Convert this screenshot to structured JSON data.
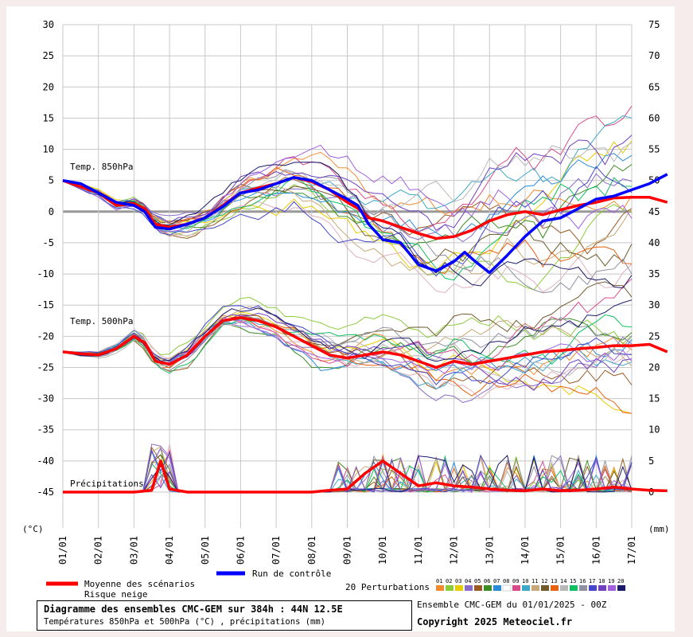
{
  "chart_data": {
    "type": "line",
    "left_axis": {
      "unit_label": "(°C)",
      "ticks": [
        30,
        25,
        20,
        15,
        10,
        5,
        0,
        -5,
        -10,
        -15,
        -20,
        -25,
        -30,
        -35,
        -40,
        -45
      ],
      "range": [
        -50,
        30
      ]
    },
    "right_axis": {
      "unit_label": "(mm)",
      "ticks": [
        75,
        70,
        65,
        60,
        55,
        50,
        45,
        40,
        35,
        30,
        25,
        20,
        15,
        10,
        5,
        0
      ],
      "range": [
        -5,
        75
      ]
    },
    "x_ticks": [
      "01/01",
      "02/01",
      "03/01",
      "04/01",
      "05/01",
      "06/01",
      "07/01",
      "08/01",
      "09/01",
      "10/01",
      "11/01",
      "12/01",
      "13/01",
      "14/01",
      "15/01",
      "16/01",
      "17/01"
    ],
    "x_range_days": [
      0,
      16
    ],
    "panel_labels": {
      "t850": "Temp. 850hPa",
      "t500": "Temp. 500hPa",
      "precip": "Précipitations"
    },
    "series": [
      {
        "name": "Moyenne des scénarios",
        "group": "t850",
        "color": "#ff0000",
        "values": [
          [
            0,
            5
          ],
          [
            0.5,
            4
          ],
          [
            1,
            3
          ],
          [
            1.5,
            1
          ],
          [
            2,
            1.3
          ],
          [
            2.3,
            0.5
          ],
          [
            2.6,
            -2
          ],
          [
            3,
            -2.5
          ],
          [
            3.5,
            -2
          ],
          [
            4,
            -1
          ],
          [
            4.5,
            1
          ],
          [
            5,
            3
          ],
          [
            5.5,
            3.8
          ],
          [
            6,
            4.5
          ],
          [
            6.5,
            5.5
          ],
          [
            7,
            4.8
          ],
          [
            7.5,
            3.5
          ],
          [
            8,
            1.5
          ],
          [
            8.3,
            0.5
          ],
          [
            8.6,
            -1
          ],
          [
            9,
            -1.5
          ],
          [
            9.5,
            -2.5
          ],
          [
            10,
            -3.5
          ],
          [
            10.5,
            -4.3
          ],
          [
            11,
            -4
          ],
          [
            11.5,
            -3
          ],
          [
            12,
            -1.5
          ],
          [
            12.5,
            -0.5
          ],
          [
            13,
            0
          ],
          [
            13.5,
            -0.5
          ],
          [
            14,
            0.3
          ],
          [
            14.5,
            1
          ],
          [
            15,
            1.5
          ],
          [
            15.5,
            2.2
          ],
          [
            16,
            2.3
          ],
          [
            16.5,
            2.3
          ],
          [
            17,
            1.5
          ]
        ]
      },
      {
        "name": "Run de contrôle",
        "group": "t850",
        "color": "#0000ff",
        "values": [
          [
            0,
            5
          ],
          [
            0.5,
            4.5
          ],
          [
            1,
            3
          ],
          [
            1.5,
            1.5
          ],
          [
            2,
            1
          ],
          [
            2.3,
            0
          ],
          [
            2.6,
            -2.5
          ],
          [
            3,
            -2.8
          ],
          [
            3.5,
            -2
          ],
          [
            4,
            -1
          ],
          [
            4.5,
            0.8
          ],
          [
            5,
            3
          ],
          [
            5.5,
            3.5
          ],
          [
            6,
            4.5
          ],
          [
            6.5,
            5.5
          ],
          [
            7,
            5
          ],
          [
            7.5,
            3.5
          ],
          [
            8,
            2
          ],
          [
            8.3,
            1
          ],
          [
            8.6,
            -2
          ],
          [
            9,
            -4.5
          ],
          [
            9.5,
            -5
          ],
          [
            10,
            -8.5
          ],
          [
            10.5,
            -9.5
          ],
          [
            11,
            -8
          ],
          [
            11.3,
            -6.5
          ],
          [
            11.6,
            -8
          ],
          [
            12,
            -9.8
          ],
          [
            12.5,
            -7
          ],
          [
            13,
            -4
          ],
          [
            13.5,
            -1.5
          ],
          [
            14,
            -1
          ],
          [
            14.5,
            0.5
          ],
          [
            15,
            2
          ],
          [
            15.5,
            2.5
          ],
          [
            16,
            3.5
          ],
          [
            16.5,
            4.5
          ],
          [
            17,
            6
          ]
        ]
      },
      {
        "name": "Moyenne des scénarios",
        "group": "t500",
        "color": "#ff0000",
        "values": [
          [
            0,
            -22.5
          ],
          [
            0.5,
            -22.8
          ],
          [
            1,
            -23
          ],
          [
            1.5,
            -22
          ],
          [
            2,
            -20
          ],
          [
            2.3,
            -21
          ],
          [
            2.6,
            -24
          ],
          [
            3,
            -24.5
          ],
          [
            3.5,
            -23
          ],
          [
            4,
            -20
          ],
          [
            4.5,
            -17.5
          ],
          [
            5,
            -17
          ],
          [
            5.5,
            -17.5
          ],
          [
            6,
            -18.5
          ],
          [
            6.5,
            -20
          ],
          [
            7,
            -21.5
          ],
          [
            7.5,
            -23
          ],
          [
            8,
            -23.5
          ],
          [
            8.5,
            -23
          ],
          [
            9,
            -22.5
          ],
          [
            9.5,
            -23
          ],
          [
            10,
            -24
          ],
          [
            10.5,
            -25
          ],
          [
            11,
            -24
          ],
          [
            11.5,
            -24.5
          ],
          [
            12,
            -24
          ],
          [
            12.5,
            -23.5
          ],
          [
            13,
            -23
          ],
          [
            13.5,
            -22.5
          ],
          [
            14,
            -22.3
          ],
          [
            14.5,
            -22
          ],
          [
            15,
            -21.8
          ],
          [
            15.5,
            -21.5
          ],
          [
            16,
            -21.5
          ],
          [
            16.5,
            -21.3
          ],
          [
            17,
            -22.5
          ]
        ]
      },
      {
        "name": "Moyenne des scénarios",
        "group": "precip",
        "color": "#ff0000",
        "values": [
          [
            0,
            0
          ],
          [
            1,
            0
          ],
          [
            2,
            0
          ],
          [
            2.5,
            0.3
          ],
          [
            2.75,
            5
          ],
          [
            3,
            0.5
          ],
          [
            3.5,
            0
          ],
          [
            4,
            0
          ],
          [
            5,
            0
          ],
          [
            6,
            0
          ],
          [
            7,
            0
          ],
          [
            7.5,
            0.3
          ],
          [
            8,
            0.5
          ],
          [
            8.5,
            3
          ],
          [
            9,
            5
          ],
          [
            9.5,
            3
          ],
          [
            10,
            1
          ],
          [
            10.5,
            1.5
          ],
          [
            11,
            1
          ],
          [
            11.5,
            0.8
          ],
          [
            12,
            0.5
          ],
          [
            12.5,
            0.3
          ],
          [
            13,
            0.2
          ],
          [
            13.5,
            0.5
          ],
          [
            14,
            0.2
          ],
          [
            14.5,
            0.3
          ],
          [
            15,
            0.5
          ],
          [
            15.5,
            0.8
          ],
          [
            16,
            0.5
          ],
          [
            16.5,
            0.3
          ],
          [
            17,
            0.2
          ]
        ]
      }
    ],
    "perturbation_colors": [
      "#f28b30",
      "#8ccc3c",
      "#e8cc00",
      "#8a6cc8",
      "#9a5a24",
      "#3c8c24",
      "#2a8cd8",
      "#ffffff",
      "#d84c8c",
      "#3ca8c8",
      "#c8a878",
      "#705a2c",
      "#e86010",
      "#b8b8b8",
      "#10c060",
      "#9090a0",
      "#4646c8",
      "#7040c0",
      "#a060e0",
      "#1a1a6a"
    ],
    "legend": {
      "mean_label": "Moyenne des scénarios",
      "snow_label": "Risque neige",
      "control_label": "Run de contrôle",
      "perturbations_label": "20 Perturbations",
      "pert_numbers": [
        "01",
        "02",
        "03",
        "04",
        "05",
        "06",
        "07",
        "08",
        "09",
        "10",
        "11",
        "12",
        "13",
        "14",
        "15",
        "16",
        "17",
        "18",
        "19",
        "20"
      ]
    }
  },
  "footer": {
    "title_line": "Diagramme des ensembles CMC-GEM sur 384h : 44N 12.5E",
    "subtitle_line": "Températures 850hPa et 500hPa (°C) , précipitations (mm)",
    "run_line": "Ensemble CMC-GEM du 01/01/2025 - 00Z",
    "copyright_line": "Copyright 2025 Meteociel.fr"
  }
}
